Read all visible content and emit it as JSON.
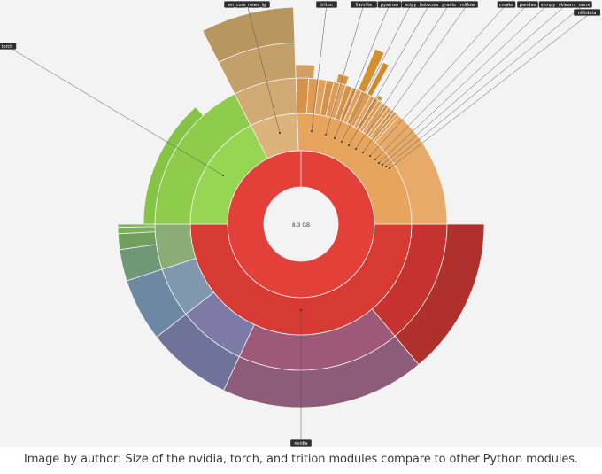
{
  "caption": "Image by author: Size of the nvidia, torch, and trition modules compare to other Python modules.",
  "chart_data": {
    "type": "sunburst",
    "center_label": "8.3 GB",
    "labels": [
      "nvidia",
      "torch",
      "triton",
      "en_core_news_lg",
      "llamlite",
      "pyarrow",
      "scipy",
      "botocore",
      "gradio",
      "mlflow",
      "cmake",
      "pandas",
      "sympy",
      "sklearn",
      "onnx",
      "nltkdata"
    ],
    "root_share": {
      "nvidia": 0.5,
      "torch": 0.2,
      "triton": 0.1,
      "others": 0.2
    },
    "colors": {
      "nvidia": "#d93a34",
      "torch": "#8cc94c",
      "triton": "#d9a96c",
      "others": "#e29c52",
      "hub": "#ffffff"
    }
  }
}
